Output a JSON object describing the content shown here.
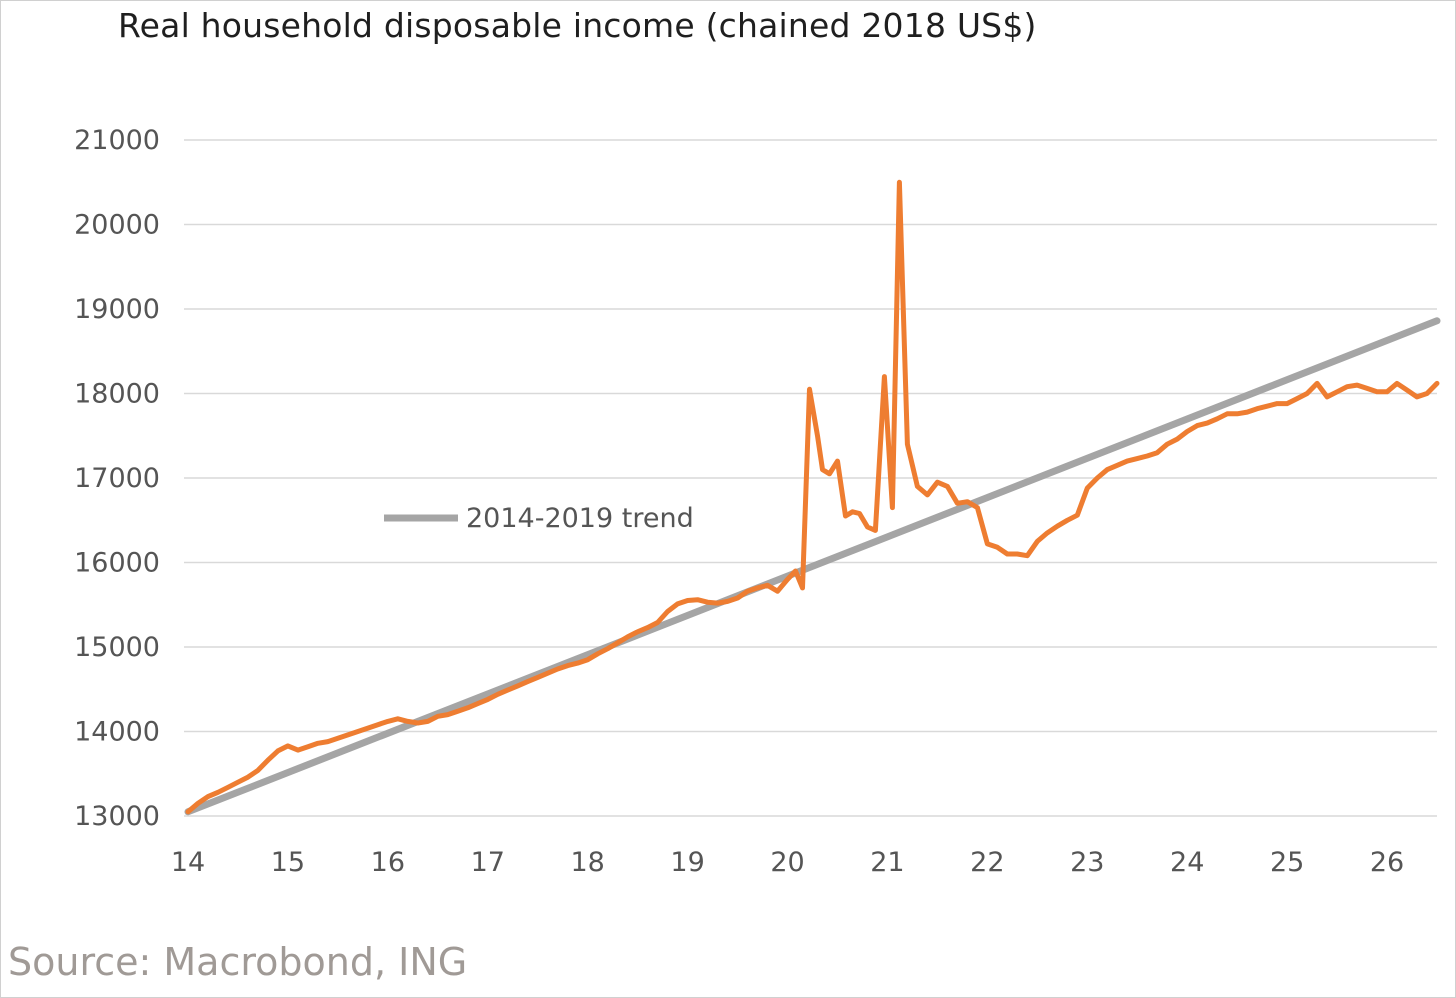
{
  "chart_data": {
    "type": "line",
    "title": "Real household disposable income (chained 2018 US$)",
    "xlabel": "",
    "ylabel": "",
    "xlim": [
      14,
      26.5
    ],
    "ylim": [
      13000,
      21000
    ],
    "x_ticks": [
      "14",
      "15",
      "16",
      "17",
      "18",
      "19",
      "20",
      "21",
      "22",
      "23",
      "24",
      "25",
      "26"
    ],
    "y_ticks": [
      "13000",
      "14000",
      "15000",
      "16000",
      "17000",
      "18000",
      "19000",
      "20000",
      "21000"
    ],
    "grid": "horizontal",
    "legend_position": "center-left",
    "series": [
      {
        "name": "",
        "color": "#ee7d31",
        "points": [
          [
            14.0,
            13050
          ],
          [
            14.1,
            13150
          ],
          [
            14.2,
            13230
          ],
          [
            14.3,
            13280
          ],
          [
            14.4,
            13340
          ],
          [
            14.5,
            13400
          ],
          [
            14.6,
            13460
          ],
          [
            14.7,
            13540
          ],
          [
            14.8,
            13660
          ],
          [
            14.9,
            13770
          ],
          [
            15.0,
            13830
          ],
          [
            15.1,
            13780
          ],
          [
            15.2,
            13820
          ],
          [
            15.3,
            13860
          ],
          [
            15.4,
            13880
          ],
          [
            15.5,
            13920
          ],
          [
            15.6,
            13960
          ],
          [
            15.7,
            14000
          ],
          [
            15.8,
            14040
          ],
          [
            15.9,
            14080
          ],
          [
            16.0,
            14120
          ],
          [
            16.1,
            14150
          ],
          [
            16.2,
            14120
          ],
          [
            16.3,
            14100
          ],
          [
            16.4,
            14120
          ],
          [
            16.5,
            14180
          ],
          [
            16.6,
            14200
          ],
          [
            16.7,
            14240
          ],
          [
            16.8,
            14280
          ],
          [
            16.9,
            14330
          ],
          [
            17.0,
            14380
          ],
          [
            17.1,
            14440
          ],
          [
            17.2,
            14490
          ],
          [
            17.3,
            14540
          ],
          [
            17.4,
            14590
          ],
          [
            17.5,
            14640
          ],
          [
            17.6,
            14690
          ],
          [
            17.7,
            14740
          ],
          [
            17.8,
            14780
          ],
          [
            17.9,
            14810
          ],
          [
            18.0,
            14850
          ],
          [
            18.1,
            14920
          ],
          [
            18.2,
            14980
          ],
          [
            18.3,
            15050
          ],
          [
            18.4,
            15120
          ],
          [
            18.5,
            15180
          ],
          [
            18.6,
            15230
          ],
          [
            18.7,
            15290
          ],
          [
            18.8,
            15420
          ],
          [
            18.9,
            15510
          ],
          [
            19.0,
            15550
          ],
          [
            19.1,
            15560
          ],
          [
            19.2,
            15530
          ],
          [
            19.3,
            15520
          ],
          [
            19.4,
            15540
          ],
          [
            19.5,
            15580
          ],
          [
            19.6,
            15660
          ],
          [
            19.7,
            15700
          ],
          [
            19.8,
            15730
          ],
          [
            19.9,
            15660
          ],
          [
            20.0,
            15800
          ],
          [
            20.08,
            15900
          ],
          [
            20.15,
            15700
          ],
          [
            20.22,
            18050
          ],
          [
            20.3,
            17500
          ],
          [
            20.35,
            17100
          ],
          [
            20.42,
            17050
          ],
          [
            20.5,
            17200
          ],
          [
            20.58,
            16550
          ],
          [
            20.65,
            16600
          ],
          [
            20.72,
            16580
          ],
          [
            20.8,
            16420
          ],
          [
            20.88,
            16380
          ],
          [
            20.97,
            18200
          ],
          [
            21.05,
            16650
          ],
          [
            21.12,
            20500
          ],
          [
            21.2,
            17400
          ],
          [
            21.3,
            16900
          ],
          [
            21.4,
            16800
          ],
          [
            21.5,
            16950
          ],
          [
            21.6,
            16900
          ],
          [
            21.7,
            16700
          ],
          [
            21.8,
            16720
          ],
          [
            21.9,
            16650
          ],
          [
            22.0,
            16220
          ],
          [
            22.1,
            16180
          ],
          [
            22.2,
            16100
          ],
          [
            22.3,
            16100
          ],
          [
            22.4,
            16080
          ],
          [
            22.5,
            16250
          ],
          [
            22.6,
            16350
          ],
          [
            22.7,
            16430
          ],
          [
            22.8,
            16500
          ],
          [
            22.9,
            16560
          ],
          [
            23.0,
            16880
          ],
          [
            23.1,
            17000
          ],
          [
            23.2,
            17100
          ],
          [
            23.3,
            17150
          ],
          [
            23.4,
            17200
          ],
          [
            23.5,
            17230
          ],
          [
            23.6,
            17260
          ],
          [
            23.7,
            17300
          ],
          [
            23.8,
            17400
          ],
          [
            23.9,
            17460
          ],
          [
            24.0,
            17550
          ],
          [
            24.1,
            17620
          ],
          [
            24.2,
            17650
          ],
          [
            24.3,
            17700
          ],
          [
            24.4,
            17760
          ],
          [
            24.5,
            17760
          ],
          [
            24.6,
            17780
          ],
          [
            24.7,
            17820
          ],
          [
            24.8,
            17850
          ],
          [
            24.9,
            17880
          ],
          [
            25.0,
            17880
          ],
          [
            25.1,
            17940
          ],
          [
            25.2,
            18000
          ],
          [
            25.3,
            18120
          ],
          [
            25.4,
            17960
          ],
          [
            25.5,
            18020
          ],
          [
            25.6,
            18080
          ],
          [
            25.7,
            18100
          ],
          [
            25.8,
            18060
          ],
          [
            25.9,
            18020
          ],
          [
            26.0,
            18020
          ],
          [
            26.1,
            18120
          ],
          [
            26.2,
            18040
          ],
          [
            26.3,
            17960
          ],
          [
            26.4,
            18000
          ],
          [
            26.5,
            18120
          ]
        ]
      },
      {
        "name": "2014-2019 trend",
        "color": "#a5a5a5",
        "points": [
          [
            14.0,
            13050
          ],
          [
            26.5,
            18860
          ]
        ]
      }
    ]
  },
  "source_note": "Source: Macrobond, ING"
}
